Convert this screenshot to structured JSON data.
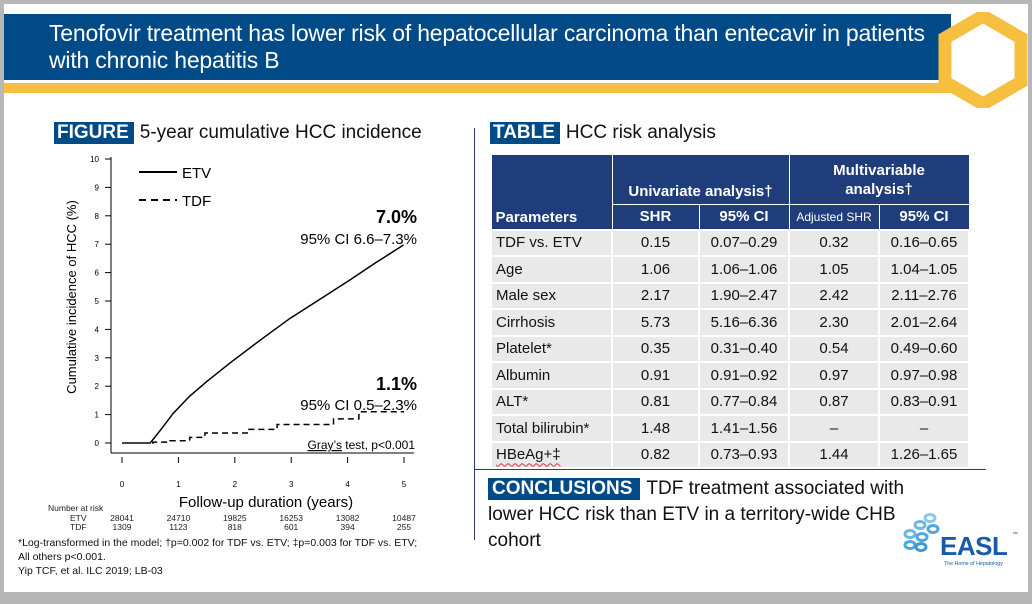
{
  "slide": {
    "title": "Tenofovir treatment has lower risk of hepatocellular carcinoma than entecavir in patients with chronic hepatitis B",
    "colors": {
      "brand_blue": "#004a87",
      "gold": "#f6bf3f",
      "table_header": "#1f3d7a",
      "table_cell": "#e9e9ea",
      "easl_blue": "#1a5aa8",
      "easl_light": "#4fa7dd"
    }
  },
  "figure": {
    "tag": "FIGURE",
    "heading": "5-year cumulative HCC incidence",
    "number_at_risk": {
      "label": "Number at risk",
      "rows": [
        {
          "group": "ETV",
          "values": [
            "28041",
            "24710",
            "19825",
            "16253",
            "13082",
            "10487"
          ]
        },
        {
          "group": "TDF",
          "values": [
            "1309",
            "1123",
            "818",
            "601",
            "394",
            "255"
          ]
        }
      ]
    }
  },
  "chart_data": {
    "type": "line",
    "title": "5-year cumulative HCC incidence",
    "xlabel": "Follow-up duration (years)",
    "ylabel": "Cumulative incidence of HCC (%)",
    "xlim": [
      0,
      5
    ],
    "ylim": [
      0,
      10
    ],
    "xticks": [
      "0",
      "1",
      "2",
      "3",
      "4",
      "5"
    ],
    "yticks": [
      "0",
      "1",
      "2",
      "3",
      "4",
      "5",
      "6",
      "7",
      "8",
      "9",
      "10"
    ],
    "grid": false,
    "legend": {
      "placement": "top-left",
      "entries": [
        {
          "name": "ETV",
          "style": "solid"
        },
        {
          "name": "TDF",
          "style": "dashed"
        }
      ]
    },
    "series": [
      {
        "name": "ETV",
        "style": "solid",
        "x": [
          0,
          0.5,
          0.7,
          0.91,
          1.2,
          1.5,
          1.91,
          2.45,
          2.98,
          3.5,
          4.04,
          4.5,
          4.99
        ],
        "y": [
          0,
          0,
          0.5,
          1.05,
          1.65,
          2.16,
          2.81,
          3.62,
          4.39,
          5.05,
          5.74,
          6.35,
          6.97
        ]
      },
      {
        "name": "TDF",
        "style": "dashed",
        "step": true,
        "x": [
          0,
          0.55,
          0.85,
          1.2,
          1.47,
          2.25,
          2.75,
          3.75,
          4.2,
          5.0
        ],
        "y": [
          0,
          0.03,
          0.08,
          0.2,
          0.35,
          0.48,
          0.65,
          0.85,
          1.1,
          1.1
        ]
      }
    ],
    "annotations": [
      {
        "text": "7.0%",
        "bold": true,
        "at": "ETV end"
      },
      {
        "text": "95% CI 6.6–7.3%",
        "at": "ETV end"
      },
      {
        "text": "1.1%",
        "bold": true,
        "at": "TDF end"
      },
      {
        "text": "95% CI 0.5–2.3%",
        "at": "TDF end"
      },
      {
        "text": "Gray’s test, p<0.001",
        "at": "bottom-right"
      }
    ]
  },
  "chart_labels": {
    "etv_value": "7.0%",
    "etv_ci": "95% CI 6.6–7.3%",
    "tdf_value": "1.1%",
    "tdf_ci": "95% CI 0.5–2.3%",
    "grays_word": "Gray’s",
    "grays_rest": " test, p<0.001",
    "legend_etv": "ETV",
    "legend_tdf": "TDF"
  },
  "table": {
    "tag": "TABLE",
    "heading": "HCC risk analysis",
    "group_headers": [
      "Univariate analysis†",
      "Multivariable analysis†"
    ],
    "multi_line1": "Multivariable",
    "multi_line2": "analysis†",
    "columns": [
      "Parameters",
      "SHR",
      "95% CI",
      "Adjusted SHR",
      "95% CI"
    ],
    "rows": [
      [
        "TDF vs. ETV",
        "0.15",
        "0.07–0.29",
        "0.32",
        "0.16–0.65"
      ],
      [
        "Age",
        "1.06",
        "1.06–1.06",
        "1.05",
        "1.04–1.05"
      ],
      [
        "Male sex",
        "2.17",
        "1.90–2.47",
        "2.42",
        "2.11–2.76"
      ],
      [
        "Cirrhosis",
        "5.73",
        "5.16–6.36",
        "2.30",
        "2.01–2.64"
      ],
      [
        "Platelet*",
        "0.35",
        "0.31–0.40",
        "0.54",
        "0.49–0.60"
      ],
      [
        "Albumin",
        "0.91",
        "0.91–0.92",
        "0.97",
        "0.97–0.98"
      ],
      [
        "ALT*",
        "0.81",
        "0.77–0.84",
        "0.87",
        "0.83–0.91"
      ],
      [
        "Total bilirubin*",
        "1.48",
        "1.41–1.56",
        "–",
        "–"
      ],
      [
        "HBeAg+‡",
        "0.82",
        "0.73–0.93",
        "1.44",
        "1.26–1.65"
      ]
    ]
  },
  "conclusions": {
    "tag": "CONCLUSIONS",
    "text": "TDF treatment associated with lower HCC risk than ETV in a territory-wide CHB cohort"
  },
  "footnotes": {
    "line1": "*Log-transformed in the model; †p=0.002 for TDF vs. ETV; ‡p=0.003 for TDF vs. ETV;",
    "line2": "All others p<0.001.",
    "citation": "Yip TCF, et al. ILC 2019; LB-03"
  },
  "logo": {
    "name": "EASL",
    "tagline": "The Home of Hepatology",
    "tm": "™"
  }
}
